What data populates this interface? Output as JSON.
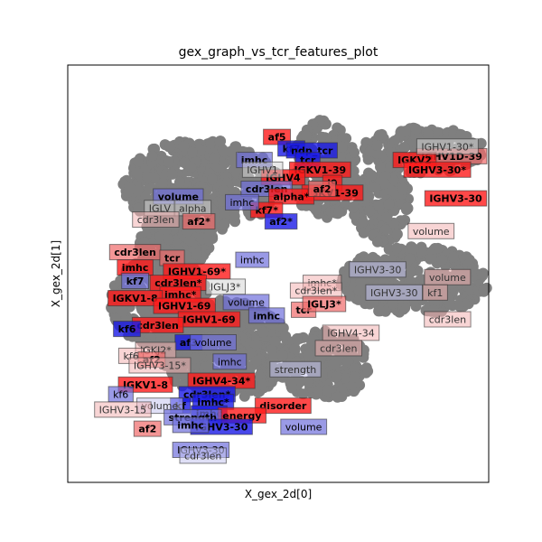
{
  "chart_data": {
    "type": "scatter",
    "title": "gex_graph_vs_tcr_features_plot",
    "xlabel": "X_gex_2d[0]",
    "ylabel": "X_gex_2d[1]",
    "xlim": [
      0,
      100
    ],
    "ylim": [
      0,
      100
    ],
    "grid": false,
    "legend": "none",
    "colors": {
      "point": "#7f7f7f",
      "label_red_strong": "#ff1a1a",
      "label_red_mid": "#f06a6a",
      "label_red_light": "#f3b3b3",
      "label_blue_strong": "#1a1ae6",
      "label_blue_mid": "#6f6fdc",
      "label_blue_light": "#c4c4ee",
      "label_gray": "#d6d6d6"
    },
    "clusters": [
      {
        "cx": 28,
        "cy": 73,
        "rx": 19,
        "ry": 12
      },
      {
        "cx": 58,
        "cy": 77,
        "rx": 8,
        "ry": 13
      },
      {
        "cx": 82,
        "cy": 82,
        "rx": 15,
        "ry": 6
      },
      {
        "cx": 72,
        "cy": 68,
        "rx": 7,
        "ry": 10
      },
      {
        "cx": 80,
        "cy": 48,
        "rx": 18,
        "ry": 9
      },
      {
        "cx": 18,
        "cy": 43,
        "rx": 12,
        "ry": 12
      },
      {
        "cx": 34,
        "cy": 30,
        "rx": 16,
        "ry": 13
      },
      {
        "cx": 58,
        "cy": 26,
        "rx": 11,
        "ry": 9
      },
      {
        "cx": 22,
        "cy": 58,
        "rx": 9,
        "ry": 7
      }
    ],
    "labels": [
      {
        "text": "af5",
        "x": 46.5,
        "y": 85.5,
        "color": "red",
        "shade": 3,
        "bold": true
      },
      {
        "text": "kf7",
        "x": 50,
        "y": 82.5,
        "color": "blue",
        "shade": 3,
        "bold": true
      },
      {
        "text": "ndp_tcr",
        "x": 55,
        "y": 82,
        "color": "blue",
        "shade": 3,
        "bold": true
      },
      {
        "text": "imhc",
        "x": 41,
        "y": 79.5,
        "color": "blue",
        "shade": 2,
        "bold": true
      },
      {
        "text": "tcr",
        "x": 54,
        "y": 79.5,
        "color": "blue",
        "shade": 3,
        "bold": true
      },
      {
        "text": "IGKV1-39",
        "x": 57,
        "y": 77,
        "color": "red",
        "shade": 3,
        "bold": true
      },
      {
        "text": "IGHV4",
        "x": 48,
        "y": 75,
        "color": "red",
        "shade": 3,
        "bold": true
      },
      {
        "text": "IGHV1",
        "x": 43,
        "y": 77,
        "color": "gray",
        "shade": 1,
        "bold": false
      },
      {
        "text": "cdr3len",
        "x": 44,
        "y": 72,
        "color": "blue",
        "shade": 2,
        "bold": true
      },
      {
        "text": "j9",
        "x": 60,
        "y": 73.5,
        "color": "red",
        "shade": 3,
        "bold": true
      },
      {
        "text": "IGKV1-39",
        "x": 60,
        "y": 71,
        "color": "red",
        "shade": 3,
        "bold": true
      },
      {
        "text": "alpha*",
        "x": 50,
        "y": 70,
        "color": "red",
        "shade": 3,
        "bold": true
      },
      {
        "text": "af2",
        "x": 57.5,
        "y": 72,
        "color": "red",
        "shade": 2,
        "bold": true
      },
      {
        "text": "kf7*",
        "x": 44,
        "y": 66.5,
        "color": "red",
        "shade": 3,
        "bold": true
      },
      {
        "text": "af2*",
        "x": 47.5,
        "y": 63.5,
        "color": "blue",
        "shade": 3,
        "bold": true
      },
      {
        "text": "imhc",
        "x": 38,
        "y": 68.5,
        "color": "blue",
        "shade": 2,
        "bold": false
      },
      {
        "text": "volume",
        "x": 22.5,
        "y": 70,
        "color": "blue",
        "shade": 2,
        "bold": true
      },
      {
        "text": "IGLV",
        "x": 18,
        "y": 67,
        "color": "gray",
        "shade": 1,
        "bold": false
      },
      {
        "text": "alpha",
        "x": 26,
        "y": 67,
        "color": "gray",
        "shade": 1,
        "bold": false
      },
      {
        "text": "cdr3len",
        "x": 17,
        "y": 64,
        "color": "red",
        "shade": 1,
        "bold": false
      },
      {
        "text": "af2*",
        "x": 27.5,
        "y": 63.5,
        "color": "red",
        "shade": 2,
        "bold": true
      },
      {
        "text": "IGHV1D-39",
        "x": 93.5,
        "y": 80.5,
        "color": "red",
        "shade": 2,
        "bold": true
      },
      {
        "text": "IGKV2",
        "x": 80,
        "y": 79.5,
        "color": "red",
        "shade": 3,
        "bold": true
      },
      {
        "text": "IGHV1-30*",
        "x": 88,
        "y": 83,
        "color": "gray",
        "shade": 1,
        "bold": false
      },
      {
        "text": "IGHV3-30*",
        "x": 85.5,
        "y": 77,
        "color": "red",
        "shade": 3,
        "bold": true
      },
      {
        "text": "IGHV3-30",
        "x": 90,
        "y": 69.5,
        "color": "red",
        "shade": 3,
        "bold": true
      },
      {
        "text": "volume",
        "x": 84,
        "y": 61,
        "color": "red",
        "shade": 1,
        "bold": false
      },
      {
        "text": "cdr3len",
        "x": 12,
        "y": 55.5,
        "color": "red",
        "shade": 2,
        "bold": true
      },
      {
        "text": "tcr",
        "x": 21,
        "y": 54,
        "color": "red",
        "shade": 2,
        "bold": true
      },
      {
        "text": "imhc",
        "x": 12,
        "y": 51.5,
        "color": "red",
        "shade": 3,
        "bold": true
      },
      {
        "text": "IGHV1-69*",
        "x": 27,
        "y": 50.5,
        "color": "red",
        "shade": 3,
        "bold": true
      },
      {
        "text": "imhc",
        "x": 40.5,
        "y": 53.5,
        "color": "blue",
        "shade": 2,
        "bold": false
      },
      {
        "text": "kf7",
        "x": 12,
        "y": 48,
        "color": "blue",
        "shade": 2,
        "bold": true
      },
      {
        "text": "cdr3len*",
        "x": 22.5,
        "y": 47.5,
        "color": "red",
        "shade": 3,
        "bold": true
      },
      {
        "text": "IGLJ3*",
        "x": 34,
        "y": 46.5,
        "color": "gray",
        "shade": 1,
        "bold": false
      },
      {
        "text": "imhc*",
        "x": 23,
        "y": 44.5,
        "color": "red",
        "shade": 3,
        "bold": true
      },
      {
        "text": "IGKV1-8",
        "x": 12,
        "y": 43.5,
        "color": "red",
        "shade": 3,
        "bold": true
      },
      {
        "text": "IGHV1-69",
        "x": 24,
        "y": 41.5,
        "color": "red",
        "shade": 3,
        "bold": true
      },
      {
        "text": "volume",
        "x": 39,
        "y": 42.5,
        "color": "blue",
        "shade": 2,
        "bold": false
      },
      {
        "text": "IGHV1-69",
        "x": 30,
        "y": 38,
        "color": "red",
        "shade": 3,
        "bold": true
      },
      {
        "text": "imhc",
        "x": 44,
        "y": 39,
        "color": "blue",
        "shade": 2,
        "bold": true
      },
      {
        "text": "cdr3len",
        "x": 17.5,
        "y": 36.5,
        "color": "red",
        "shade": 3,
        "bold": true
      },
      {
        "text": "kf6",
        "x": 10,
        "y": 35.5,
        "color": "blue",
        "shade": 3,
        "bold": true
      },
      {
        "text": "tcr",
        "x": 53,
        "y": 40.5,
        "color": "red",
        "shade": 2,
        "bold": true
      },
      {
        "text": "af3",
        "x": 25,
        "y": 32,
        "color": "blue",
        "shade": 3,
        "bold": true
      },
      {
        "text": "volume",
        "x": 31,
        "y": 32,
        "color": "blue",
        "shade": 2,
        "bold": false
      },
      {
        "text": "IGKJ2*",
        "x": 17,
        "y": 30,
        "color": "red",
        "shade": 1,
        "bold": false
      },
      {
        "text": "kf6",
        "x": 11,
        "y": 28.5,
        "color": "red",
        "shade": 1,
        "bold": false
      },
      {
        "text": "af2",
        "x": 16,
        "y": 27.5,
        "color": "red",
        "shade": 2,
        "bold": true
      },
      {
        "text": "IGHV3-15*",
        "x": 18,
        "y": 26,
        "color": "red",
        "shade": 1,
        "bold": false
      },
      {
        "text": "imhc",
        "x": 35,
        "y": 27,
        "color": "blue",
        "shade": 2,
        "bold": false
      },
      {
        "text": "IGKV1-8",
        "x": 14.5,
        "y": 21,
        "color": "red",
        "shade": 3,
        "bold": true
      },
      {
        "text": "IGHV4-34*",
        "x": 33,
        "y": 22,
        "color": "red",
        "shade": 3,
        "bold": true
      },
      {
        "text": "strength",
        "x": 51,
        "y": 25,
        "color": "blue",
        "shade": 1,
        "bold": false
      },
      {
        "text": "kf6",
        "x": 8.5,
        "y": 18.5,
        "color": "blue",
        "shade": 2,
        "bold": false
      },
      {
        "text": "cdr3len*",
        "x": 29.5,
        "y": 18.5,
        "color": "blue",
        "shade": 3,
        "bold": true
      },
      {
        "text": "imhc*",
        "x": 31,
        "y": 16.5,
        "color": "blue",
        "shade": 3,
        "bold": true
      },
      {
        "text": "kf",
        "x": 23,
        "y": 15.5,
        "color": "blue",
        "shade": 3,
        "bold": true
      },
      {
        "text": "volume",
        "x": 18,
        "y": 15.5,
        "color": "blue",
        "shade": 1,
        "bold": false
      },
      {
        "text": "IGHV3-15",
        "x": 9,
        "y": 14.5,
        "color": "red",
        "shade": 1,
        "bold": false
      },
      {
        "text": "imhc",
        "x": 30,
        "y": 13.5,
        "color": "blue",
        "shade": 3,
        "bold": true
      },
      {
        "text": "disorder",
        "x": 48,
        "y": 15.5,
        "color": "red",
        "shade": 3,
        "bold": true
      },
      {
        "text": "energy",
        "x": 38,
        "y": 13,
        "color": "red",
        "shade": 3,
        "bold": true
      },
      {
        "text": "strength",
        "x": 26,
        "y": 12.5,
        "color": "blue",
        "shade": 2,
        "bold": true
      },
      {
        "text": "IGHV3-30",
        "x": 33,
        "y": 10,
        "color": "blue",
        "shade": 3,
        "bold": true
      },
      {
        "text": "imhc",
        "x": 25.5,
        "y": 10.5,
        "color": "blue",
        "shade": 2,
        "bold": true
      },
      {
        "text": "af2",
        "x": 15,
        "y": 9.5,
        "color": "red",
        "shade": 2,
        "bold": true
      },
      {
        "text": "volume",
        "x": 53,
        "y": 10,
        "color": "blue",
        "shade": 2,
        "bold": false
      },
      {
        "text": "IGHV3-30",
        "x": 28,
        "y": 4,
        "color": "blue",
        "shade": 2,
        "bold": false
      },
      {
        "text": "cdr3len",
        "x": 28.5,
        "y": 2.5,
        "color": "blue",
        "shade": 1,
        "bold": false
      },
      {
        "text": "IGHV3-30",
        "x": 71,
        "y": 51,
        "color": "blue",
        "shade": 1,
        "bold": false
      },
      {
        "text": "volume",
        "x": 88,
        "y": 49,
        "color": "red",
        "shade": 1,
        "bold": false
      },
      {
        "text": "imhc*",
        "x": 57.5,
        "y": 47.5,
        "color": "red",
        "shade": 1,
        "bold": false
      },
      {
        "text": "cdr3len*",
        "x": 56,
        "y": 45.5,
        "color": "red",
        "shade": 1,
        "bold": false
      },
      {
        "text": "IGHV3-30",
        "x": 75,
        "y": 45,
        "color": "blue",
        "shade": 1,
        "bold": false
      },
      {
        "text": "kf1",
        "x": 85,
        "y": 45,
        "color": "red",
        "shade": 1,
        "bold": false
      },
      {
        "text": "IGLJ3*",
        "x": 58,
        "y": 42,
        "color": "red",
        "shade": 2,
        "bold": true
      },
      {
        "text": "cdr3len",
        "x": 88,
        "y": 38,
        "color": "red",
        "shade": 1,
        "bold": false
      },
      {
        "text": "IGHV4-34",
        "x": 64.5,
        "y": 34.5,
        "color": "red",
        "shade": 1,
        "bold": false
      },
      {
        "text": "cdr3len",
        "x": 61.5,
        "y": 30.5,
        "color": "red",
        "shade": 1,
        "bold": false
      }
    ]
  }
}
